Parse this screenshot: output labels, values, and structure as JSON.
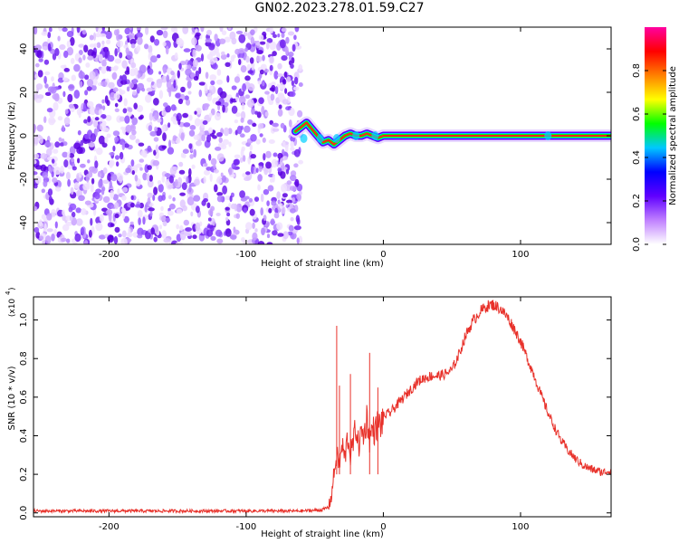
{
  "figure": {
    "title": "GN02.2023.278.01.59.C27"
  },
  "chart_data": [
    {
      "type": "heatmap",
      "xlabel": "Height of straight line (km)",
      "ylabel": "Frequency (Hz)",
      "xlim": [
        -255,
        166
      ],
      "ylim": [
        -50,
        50
      ],
      "x_ticks": [
        -200,
        -100,
        0,
        100
      ],
      "y_ticks": [
        -40,
        -20,
        0,
        20,
        40
      ],
      "noise_region_x": [
        -255,
        -60
      ],
      "signal_trace": {
        "x": [
          -64,
          -60,
          -56,
          -52,
          -48,
          -44,
          -40,
          -36,
          -32,
          -28,
          -24,
          -20,
          -16,
          -12,
          -8,
          -4,
          0,
          10,
          40,
          80,
          120,
          166
        ],
        "y": [
          2,
          4,
          6,
          3,
          0,
          -3,
          -2,
          -4,
          -2,
          0,
          1,
          0,
          0,
          1,
          0,
          -1,
          0,
          0,
          0,
          0,
          0,
          0
        ]
      },
      "colorbar": {
        "label": "Normalized spectral amplitude",
        "range": [
          0,
          1
        ],
        "ticks": [
          "0.0",
          "0.2",
          "0.4",
          "0.6",
          "0.8"
        ],
        "colors": [
          "#ffffff",
          "#c080ff",
          "#6000ff",
          "#0000ff",
          "#00c8ff",
          "#00ff00",
          "#ffff00",
          "#ff8000",
          "#ff0000",
          "#ff00a0"
        ]
      },
      "grid": false
    },
    {
      "type": "line",
      "xlabel": "Height of straight line (km)",
      "ylabel": "SNR (10 * v/v)",
      "y_exponent_label": "(x10",
      "y_exponent": "4",
      "xlim": [
        -255,
        166
      ],
      "ylim": [
        -0.02,
        1.12
      ],
      "x_ticks": [
        -200,
        -100,
        0,
        100
      ],
      "y_ticks": [
        "0.0",
        "0.2",
        "0.4",
        "0.6",
        "0.8",
        "1.0"
      ],
      "series": [
        {
          "color": "#e8312a",
          "x": [
            -255,
            -200,
            -150,
            -100,
            -60,
            -45,
            -40,
            -38,
            -36,
            -34,
            -32,
            -30,
            -28,
            -26,
            -24,
            -22,
            -20,
            -18,
            -16,
            -14,
            -12,
            -10,
            -8,
            -6,
            -4,
            -2,
            0,
            5,
            10,
            15,
            20,
            25,
            30,
            35,
            40,
            45,
            50,
            55,
            60,
            65,
            70,
            75,
            80,
            85,
            90,
            95,
            100,
            105,
            110,
            115,
            120,
            125,
            130,
            135,
            140,
            145,
            150,
            155,
            160,
            166
          ],
          "y": [
            0.01,
            0.01,
            0.01,
            0.01,
            0.01,
            0.015,
            0.03,
            0.08,
            0.2,
            0.3,
            0.25,
            0.35,
            0.28,
            0.4,
            0.3,
            0.36,
            0.45,
            0.34,
            0.42,
            0.4,
            0.5,
            0.38,
            0.44,
            0.42,
            0.47,
            0.45,
            0.5,
            0.52,
            0.56,
            0.6,
            0.64,
            0.68,
            0.7,
            0.71,
            0.71,
            0.72,
            0.74,
            0.82,
            0.92,
            0.99,
            1.04,
            1.07,
            1.08,
            1.06,
            1.02,
            0.96,
            0.89,
            0.8,
            0.71,
            0.61,
            0.52,
            0.44,
            0.37,
            0.32,
            0.28,
            0.25,
            0.23,
            0.22,
            0.21,
            0.22
          ]
        }
      ],
      "spikes": [
        {
          "x": -34,
          "y": 0.97
        },
        {
          "x": -32,
          "y": 0.66
        },
        {
          "x": -24,
          "y": 0.72
        },
        {
          "x": -10,
          "y": 0.83
        },
        {
          "x": -4,
          "y": 0.65
        }
      ],
      "grid": false
    }
  ]
}
